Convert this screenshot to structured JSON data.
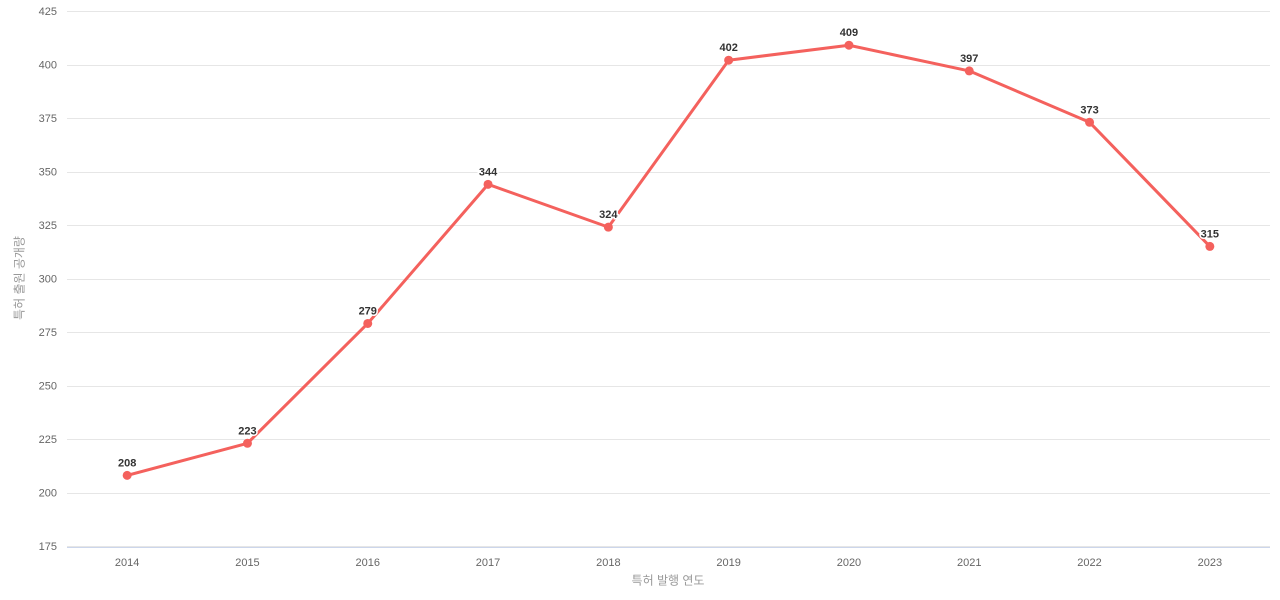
{
  "chart_data": {
    "type": "line",
    "categories": [
      "2014",
      "2015",
      "2016",
      "2017",
      "2018",
      "2019",
      "2020",
      "2021",
      "2022",
      "2023"
    ],
    "values": [
      208,
      223,
      279,
      344,
      324,
      402,
      409,
      397,
      373,
      315
    ],
    "series": [
      {
        "name": "특허 출원 공개량",
        "values": [
          208,
          223,
          279,
          344,
          324,
          402,
          409,
          397,
          373,
          315
        ]
      }
    ],
    "title": "",
    "xlabel": "특허 발행 연도",
    "ylabel": "특허 출원 공개량",
    "ylim": [
      175,
      425
    ],
    "ytick_interval": 25,
    "yticks": [
      175,
      200,
      225,
      250,
      275,
      300,
      325,
      350,
      375,
      400,
      425
    ],
    "grid": true,
    "legend_position": "none",
    "data_labels_visible": true,
    "colors": {
      "series": "#f4615d",
      "grid": "#e6e6e6",
      "axis_line": "#ccd6eb",
      "tick_text": "#666666",
      "axis_title_text": "#999999",
      "data_label": "#333333",
      "background": "#ffffff"
    }
  }
}
